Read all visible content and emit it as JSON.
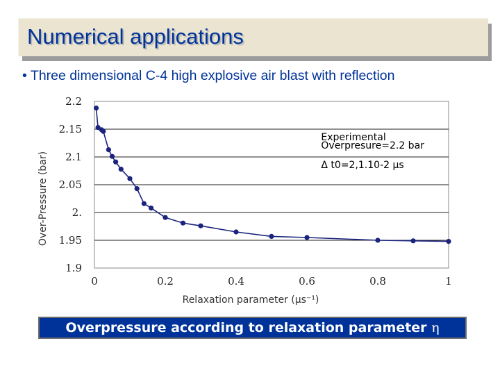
{
  "slide": {
    "title": "Numerical applications",
    "bullet_text": "Three dimensional C-4 high explosive air blast with reflection",
    "caption_text": "Overpressure according to relaxation parameter",
    "caption_symbol": "η",
    "colors": {
      "title": "#003399",
      "bullet": "#003399",
      "caption_bg": "#003399",
      "title_bar": "#eae4d1"
    }
  },
  "chart_data": {
    "type": "line",
    "xlabel": "Relaxation parameter (μs⁻¹)",
    "ylabel": "Over-Pressure (bar)",
    "xlim": [
      0,
      1
    ],
    "ylim": [
      1.9,
      2.2
    ],
    "x_ticks": [
      "0",
      "0.2",
      "0.4",
      "0.6",
      "0.8",
      "1"
    ],
    "y_ticks": [
      "2.2",
      "2.15",
      "2.1",
      "2.05",
      "2.",
      "1.95",
      "1.9"
    ],
    "grid": "horizontal",
    "line_color": "#1a237e",
    "marker_color": "#1a237e",
    "series": [
      {
        "x": [
          0.005,
          0.01,
          0.02,
          0.025,
          0.04,
          0.05,
          0.06,
          0.075,
          0.1,
          0.12,
          0.14,
          0.16,
          0.2,
          0.25,
          0.3,
          0.4,
          0.5,
          0.6,
          0.8,
          0.9,
          1.0
        ],
        "y": [
          2.188,
          2.153,
          2.149,
          2.146,
          2.113,
          2.101,
          2.091,
          2.078,
          2.061,
          2.043,
          2.016,
          2.008,
          1.991,
          1.981,
          1.976,
          1.965,
          1.957,
          1.955,
          1.95,
          1.949,
          1.948
        ]
      }
    ],
    "annotations": [
      {
        "text": "Experimental",
        "x": 0.64,
        "y": 2.13
      },
      {
        "text": "Overpresure=2.2 bar",
        "x": 0.64,
        "y": 2.115
      },
      {
        "text": "Δ t0=2,1.10-2 μs",
        "x": 0.64,
        "y": 2.08
      }
    ]
  }
}
